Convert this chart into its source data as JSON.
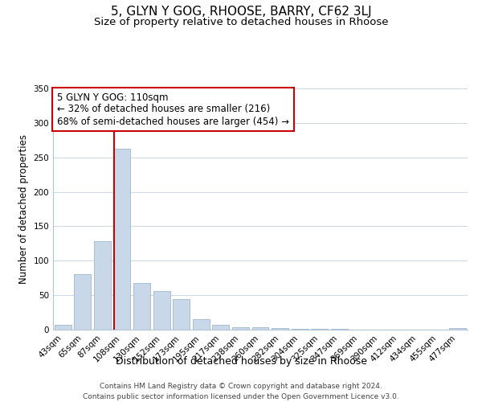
{
  "title": "5, GLYN Y GOG, RHOOSE, BARRY, CF62 3LJ",
  "subtitle": "Size of property relative to detached houses in Rhoose",
  "xlabel": "Distribution of detached houses by size in Rhoose",
  "ylabel": "Number of detached properties",
  "bar_labels": [
    "43sqm",
    "65sqm",
    "87sqm",
    "108sqm",
    "130sqm",
    "152sqm",
    "173sqm",
    "195sqm",
    "217sqm",
    "238sqm",
    "260sqm",
    "282sqm",
    "304sqm",
    "325sqm",
    "347sqm",
    "369sqm",
    "390sqm",
    "412sqm",
    "434sqm",
    "455sqm",
    "477sqm"
  ],
  "bar_values": [
    7,
    81,
    128,
    263,
    68,
    56,
    44,
    15,
    7,
    4,
    4,
    2,
    1,
    1,
    1,
    0,
    0,
    0,
    0,
    0,
    2
  ],
  "bar_color": "#c8d8e8",
  "bar_edge_color": "#a0b8cc",
  "vline_x_index": 3,
  "vline_color": "#cc0000",
  "annotation_title": "5 GLYN Y GOG: 110sqm",
  "annotation_line1": "← 32% of detached houses are smaller (216)",
  "annotation_line2": "68% of semi-detached houses are larger (454) →",
  "annotation_box_color": "#ffffff",
  "annotation_box_edge": "#cc0000",
  "ylim": [
    0,
    350
  ],
  "yticks": [
    0,
    50,
    100,
    150,
    200,
    250,
    300,
    350
  ],
  "footer_line1": "Contains HM Land Registry data © Crown copyright and database right 2024.",
  "footer_line2": "Contains public sector information licensed under the Open Government Licence v3.0.",
  "title_fontsize": 11,
  "subtitle_fontsize": 9.5,
  "ylabel_fontsize": 8.5,
  "xlabel_fontsize": 9,
  "tick_fontsize": 7.5,
  "footer_fontsize": 6.5,
  "annotation_fontsize": 8.5
}
